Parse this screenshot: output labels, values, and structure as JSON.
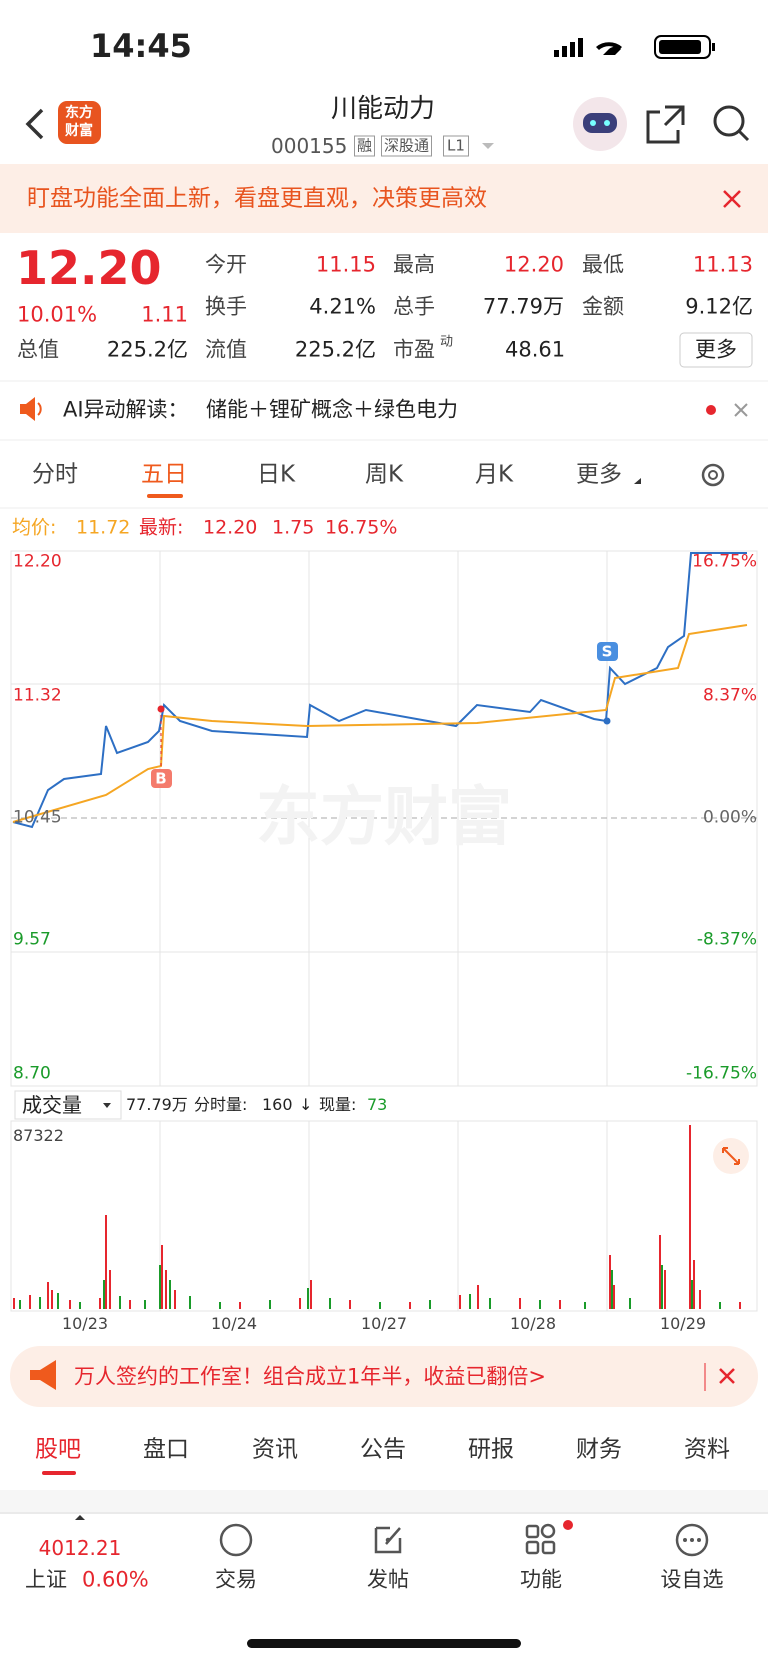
{
  "status_bar": {
    "time": "14:45"
  },
  "header": {
    "logo": [
      "东方",
      "财富"
    ],
    "title": "川能动力",
    "code": "000155",
    "tags": [
      "融",
      "深股通",
      "L1"
    ]
  },
  "banner": {
    "text": "盯盘功能全面上新，看盘更直观，决策更高效"
  },
  "quote": {
    "price": "12.20",
    "change_pct": "10.01%",
    "change": "1.11",
    "fields": [
      {
        "label": "今开",
        "value": "11.15"
      },
      {
        "label": "最高",
        "value": "12.20"
      },
      {
        "label": "最低",
        "value": "11.13"
      },
      {
        "label": "换手",
        "value": "4.21%"
      },
      {
        "label": "总手",
        "value": "77.79万"
      },
      {
        "label": "金额",
        "value": "9.12亿"
      },
      {
        "label": "总值",
        "value": "225.2亿"
      },
      {
        "label": "流值",
        "value": "225.2亿"
      },
      {
        "label": "市盈",
        "sup": "动",
        "value": "48.61"
      }
    ],
    "more": "更多"
  },
  "ai": {
    "label": "AI异动解读：",
    "text": "储能＋锂矿概念＋绿色电力"
  },
  "tabs": [
    "分时",
    "五日",
    "日K",
    "周K",
    "月K",
    "更多"
  ],
  "chart": {
    "avg_label": "均价:",
    "avg": "11.72",
    "last_label": "最新:",
    "last": "12.20",
    "change": "1.75",
    "change_pct": "16.75%",
    "left_ticks": [
      "12.20",
      "11.32",
      "10.45",
      "9.57",
      "8.70"
    ],
    "right_ticks": [
      "16.75%",
      "8.37%",
      "0.00%",
      "-8.37%",
      "-16.75%"
    ],
    "markers": [
      "B",
      "S"
    ],
    "watermark": "东方财富"
  },
  "volume": {
    "selector": "成交量",
    "total": "77.79万",
    "minute_label": "分时量:",
    "minute": "160",
    "arrow": "↓",
    "now_label": "现量:",
    "now": "73",
    "max": "87322",
    "dates": [
      "10/23",
      "10/24",
      "10/27",
      "10/28",
      "10/29"
    ]
  },
  "ad": {
    "text": "万人签约的工作室！组合成立1年半，收益已翻倍>"
  },
  "bottom_tabs": [
    "股吧",
    "盘口",
    "资讯",
    "公告",
    "研报",
    "财务",
    "资料"
  ],
  "nav": {
    "index_value": "4012.21",
    "index_name": "上证",
    "index_pct": "0.60%",
    "items": [
      "交易",
      "发帖",
      "功能",
      "设自选"
    ]
  }
}
